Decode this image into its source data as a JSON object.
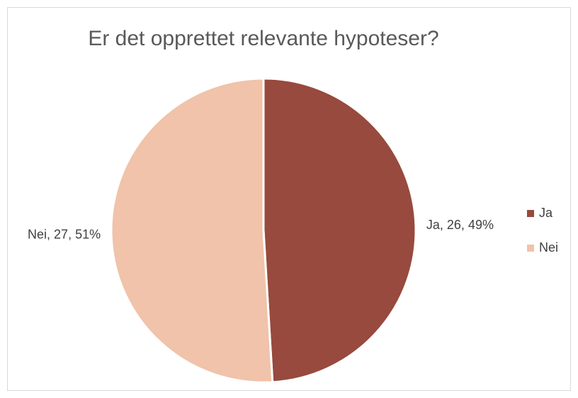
{
  "chart_data": {
    "type": "pie",
    "title": "Er det opprettet relevante hypoteser?",
    "categories": [
      "Ja",
      "Nei"
    ],
    "values": [
      26,
      27
    ],
    "value_labels": [
      "Ja, 26, 49%",
      "Nei, 27, 51%"
    ],
    "colors": [
      "#974a3d",
      "#f0c3aa"
    ],
    "legend": "right"
  }
}
